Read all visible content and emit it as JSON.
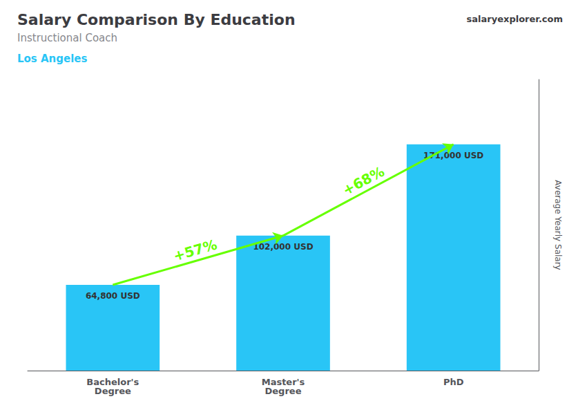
{
  "chart_data": {
    "type": "bar",
    "title": "Salary Comparison By Education",
    "subtitle": [
      "Instructional Coach",
      "Los Angeles"
    ],
    "source": "salaryexplorer.com",
    "ylabel": "Average Yearly Salary",
    "categories": [
      "Bachelor's\nDegree",
      "Master's\nDegree",
      "PhD"
    ],
    "values": [
      64800,
      102000,
      171000
    ],
    "value_labels": [
      "64,800 USD",
      "102,000 USD",
      "171,000 USD"
    ],
    "data_labels": true,
    "color": "#29c5f6",
    "ylim": [
      0,
      220000
    ],
    "tick_labels": "x",
    "grid": false,
    "annotations": [
      {
        "text": "+57%",
        "between": [
          "Bachelor's\nDegree",
          "Master's\nDegree"
        ],
        "color": "#66ff00"
      },
      {
        "text": "+68%",
        "between": [
          "Master's\nDegree",
          "PhD"
        ],
        "color": "#66ff00"
      }
    ]
  }
}
